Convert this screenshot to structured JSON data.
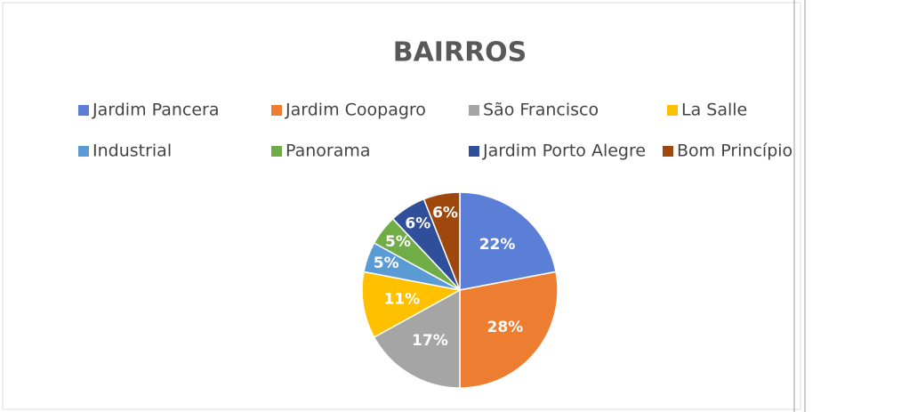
{
  "chart_data": {
    "type": "pie",
    "title": "BAIRROS",
    "categories": [
      "Jardim Pancera",
      "Jardim Coopagro",
      "São Francisco",
      "La Salle",
      "Industrial",
      "Panorama",
      "Jardim Porto Alegre",
      "Bom Princípio"
    ],
    "values": [
      22,
      28,
      17,
      11,
      5,
      5,
      6,
      6
    ],
    "value_labels": [
      "22%",
      "28%",
      "17%",
      "11%",
      "5%",
      "5%",
      "6%",
      "6%"
    ],
    "colors": [
      "#5b7fd6",
      "#ed7d31",
      "#a5a5a5",
      "#ffc000",
      "#5b9bd5",
      "#70ad47",
      "#2f4f9a",
      "#9e480e"
    ],
    "legend": "top"
  }
}
